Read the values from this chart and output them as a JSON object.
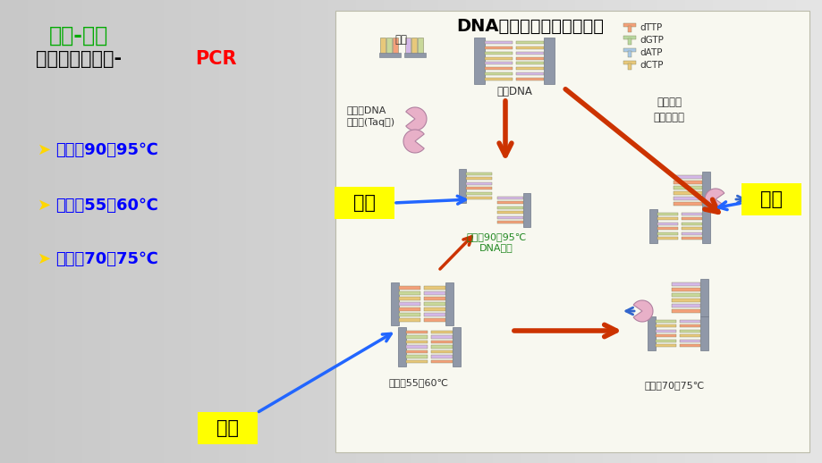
{
  "title_explore": "探究-实践",
  "title_explore_color": "#00aa00",
  "subtitle_black": "（一）基础知识-",
  "subtitle_pcr": "PCR",
  "subtitle_pcr_color": "#ff0000",
  "bullet_color": "#ffd700",
  "bullet_text_color": "#0000ff",
  "items": [
    {
      "text": "变性：90～95℃"
    },
    {
      "text": "复性：55～60℃"
    },
    {
      "text": "延伸：70～75℃"
    }
  ],
  "main_title": "DNA片段的扩增及电泳鉴定",
  "label_bianxing": "变性",
  "label_fuxing": "复性",
  "label_yanshen": "延伸",
  "label_bg": "#ffff00",
  "text_mubandna": "模板DNA",
  "text_yinwu": "引物",
  "text_rwendingdna": "热稳定DNA\n聚合酶(Taq酶)",
  "text_jiare1": "加热至90～95℃\nDNA解链",
  "text_jiare2": "加热至70～75℃",
  "text_lengnque": "冷却至55～60℃",
  "text_meiyixunhuan": "每一循环\n拷贝数加倍",
  "text_dctp": "dCTP\ndATP\ndGTP\ndTTP",
  "rung_colors_l": [
    "#e8c87a",
    "#c8d89a",
    "#f4a07a",
    "#d4b8e8",
    "#e8c87a",
    "#c8d89a",
    "#f4a07a",
    "#d4b8e8"
  ],
  "rung_colors_r": [
    "#f4a07a",
    "#d4b8e8",
    "#e8c87a",
    "#c8d89a",
    "#f4a07a",
    "#d4b8e8",
    "#e8c87a",
    "#c8d89a"
  ],
  "rail_color": "#9098a8",
  "enzyme_color": "#e8b0c8"
}
